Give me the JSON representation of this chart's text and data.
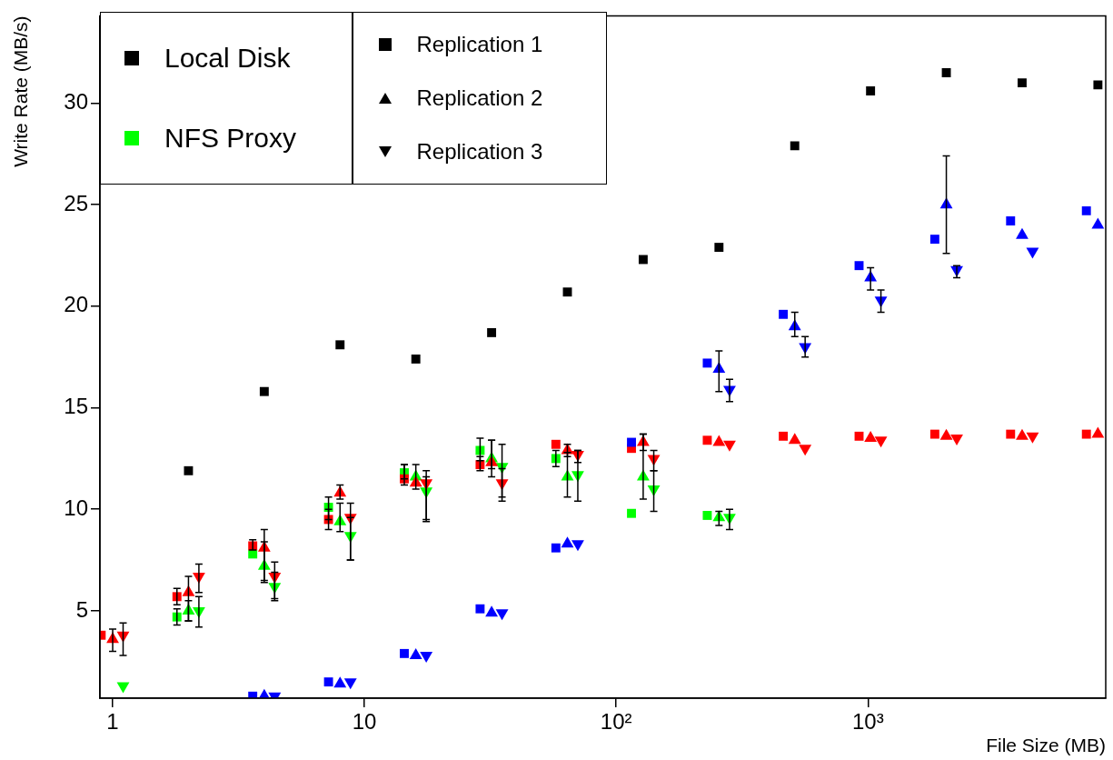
{
  "chart_data": {
    "type": "scatter",
    "xlabel": "File Size (MB)",
    "ylabel": "Write Rate (MB/s)",
    "log": "x",
    "grid": false,
    "legend": "top left",
    "xlim": [
      0.89,
      8800
    ],
    "xticks": [
      1,
      10,
      {
        "value": 100,
        "label": "10²"
      },
      {
        "value": 1000,
        "label": "10³"
      }
    ],
    "ylim": [
      0.7,
      34.3
    ],
    "yticks": [
      5,
      10,
      15,
      20,
      25,
      30
    ],
    "annotations": [
      "Replication 1",
      "Replication 2",
      "Replication 3"
    ],
    "series": [
      {
        "name": "Local Disk",
        "color": "#000000",
        "marker": "square",
        "x": [
          2,
          4,
          8,
          16,
          32,
          64,
          128,
          256,
          512,
          1024,
          2048,
          4096,
          8192
        ],
        "values": [
          11.9,
          15.8,
          18.1,
          17.4,
          18.7,
          20.7,
          22.3,
          22.9,
          27.9,
          30.6,
          31.5,
          31.0,
          30.9
        ]
      },
      {
        "color": "#0000ff",
        "marker": "square",
        "x": [
          3.6,
          7.2,
          14.4,
          28.8,
          57.6,
          115,
          230,
          461,
          922,
          1843,
          3686,
          7373
        ],
        "values": [
          0.8,
          1.5,
          2.9,
          5.1,
          8.1,
          13.3,
          17.2,
          19.6,
          22.0,
          23.3,
          24.2,
          24.7
        ]
      },
      {
        "color": "#0000ff",
        "marker": "triangle",
        "x": [
          4,
          8,
          16,
          32,
          64,
          128,
          256,
          512,
          1024,
          2048,
          4096,
          8192
        ],
        "values": [
          0.8,
          1.4,
          2.8,
          4.9,
          8.3,
          null,
          16.9,
          19.0,
          21.4,
          25.0,
          23.5,
          24.0
        ],
        "errors": [
          null,
          null,
          null,
          null,
          null,
          null,
          [
            15.8,
            17.8
          ],
          [
            18.5,
            19.7
          ],
          [
            20.8,
            21.9
          ],
          [
            22.6,
            27.4
          ],
          null,
          null
        ]
      },
      {
        "color": "#0000ff",
        "marker": "triangle-down",
        "x": [
          4.4,
          8.8,
          17.6,
          35.2,
          70.4,
          141,
          282,
          563,
          1126,
          2253,
          4506
        ],
        "values": [
          0.8,
          1.5,
          2.8,
          4.9,
          8.3,
          null,
          15.9,
          18.0,
          20.3,
          21.8,
          22.7
        ],
        "errors": [
          null,
          null,
          null,
          null,
          null,
          null,
          [
            15.3,
            16.4
          ],
          [
            17.5,
            18.5
          ],
          [
            19.7,
            20.8
          ],
          [
            21.4,
            22.0
          ],
          null
        ]
      },
      {
        "color": "#ff0000",
        "marker": "square",
        "x": [
          0.9,
          1.8,
          3.6,
          7.2,
          14.4,
          28.8,
          57.6,
          115,
          230,
          461,
          922,
          1843,
          3686,
          7373
        ],
        "values": [
          3.8,
          5.7,
          8.2,
          9.5,
          11.5,
          12.2,
          13.2,
          13.0,
          13.4,
          13.6,
          13.6,
          13.7,
          13.7,
          13.7
        ],
        "errors": [
          null,
          [
            5.3,
            6.1
          ],
          [
            8.0,
            8.5
          ],
          [
            9.0,
            10.0
          ],
          [
            11.2,
            12.2
          ],
          [
            11.9,
            12.6
          ],
          null,
          null,
          null,
          null,
          null,
          null,
          null,
          null
        ]
      },
      {
        "color": "#ff0000",
        "marker": "triangle",
        "x": [
          1,
          2,
          4,
          8,
          16,
          32,
          64,
          128,
          256,
          512,
          1024,
          2048,
          4096,
          8192
        ],
        "values": [
          3.6,
          5.9,
          8.1,
          10.8,
          11.3,
          12.3,
          12.9,
          13.3,
          13.3,
          13.4,
          13.5,
          13.6,
          13.6,
          13.7
        ],
        "errors": [
          [
            3.0,
            4.1
          ],
          [
            4.5,
            6.7
          ],
          [
            6.4,
            9.0
          ],
          [
            10.5,
            11.2
          ],
          null,
          [
            11.6,
            13.4
          ],
          [
            12.6,
            13.2
          ],
          [
            12.9,
            13.7
          ],
          null,
          null,
          null,
          null,
          null,
          null
        ]
      },
      {
        "color": "#ff0000",
        "marker": "triangle-down",
        "x": [
          1.1,
          2.2,
          4.4,
          8.8,
          17.6,
          35.2,
          70.4,
          141,
          282,
          563,
          1126,
          2253,
          4506
        ],
        "values": [
          3.8,
          6.7,
          6.7,
          9.6,
          11.3,
          11.3,
          12.7,
          12.5,
          13.2,
          13.0,
          13.4,
          13.5,
          13.6
        ],
        "errors": [
          [
            2.8,
            4.4
          ],
          [
            5.9,
            7.3
          ],
          [
            5.6,
            7.4
          ],
          [
            7.5,
            10.3
          ],
          [
            9.5,
            11.9
          ],
          [
            10.6,
            12.0
          ],
          [
            12.3,
            12.9
          ],
          [
            11.9,
            12.9
          ],
          null,
          null,
          null,
          null,
          null
        ]
      },
      {
        "name": "NFS Proxy",
        "color": "#00ff00",
        "marker": "square",
        "x": [
          1.8,
          3.6,
          7.2,
          14.4,
          28.8,
          57.6,
          115,
          230
        ],
        "values": [
          4.7,
          7.8,
          10.1,
          11.8,
          12.9,
          12.5,
          9.8,
          9.7
        ],
        "errors": [
          [
            4.3,
            5.1
          ],
          null,
          [
            9.5,
            10.6
          ],
          [
            11.5,
            12.2
          ],
          [
            12.4,
            13.5
          ],
          [
            12.1,
            12.9
          ],
          null,
          null
        ]
      },
      {
        "color": "#00ff00",
        "marker": "triangle",
        "x": [
          2,
          4,
          8,
          16,
          32,
          64,
          128,
          256
        ],
        "values": [
          5.0,
          7.2,
          9.4,
          11.6,
          12.5,
          11.6,
          11.6,
          9.6
        ],
        "errors": [
          [
            4.5,
            5.5
          ],
          [
            6.5,
            8.4
          ],
          [
            8.9,
            10.3
          ],
          [
            11.0,
            12.2
          ],
          [
            12.0,
            13.4
          ],
          [
            10.6,
            12.8
          ],
          [
            10.5,
            13.7
          ],
          [
            9.2,
            9.9
          ]
        ]
      },
      {
        "color": "#00ff00",
        "marker": "triangle-down",
        "x": [
          1.1,
          2.2,
          4.4,
          8.8,
          17.6,
          35.2,
          70.4,
          141,
          282
        ],
        "values": [
          1.3,
          5.0,
          6.2,
          8.7,
          10.9,
          12.1,
          11.7,
          11.0,
          9.6
        ],
        "errors": [
          null,
          [
            4.2,
            5.7
          ],
          [
            5.5,
            6.9
          ],
          [
            7.5,
            9.6
          ],
          [
            9.4,
            11.6
          ],
          [
            10.4,
            13.2
          ],
          [
            10.4,
            12.9
          ],
          [
            9.9,
            11.9
          ],
          [
            9.0,
            10.0
          ]
        ]
      }
    ]
  }
}
